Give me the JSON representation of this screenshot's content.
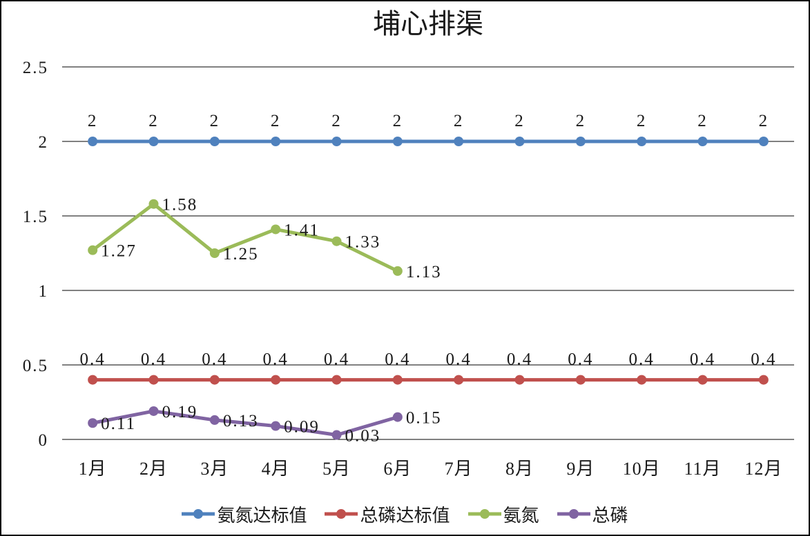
{
  "title": "埔心排渠",
  "chart_data": {
    "type": "line",
    "title": "埔心排渠",
    "xlabel": "",
    "ylabel": "",
    "categories": [
      "1月",
      "2月",
      "3月",
      "4月",
      "5月",
      "6月",
      "7月",
      "8月",
      "9月",
      "10月",
      "11月",
      "12月"
    ],
    "y_ticks": [
      "0",
      "0.5",
      "1",
      "1.5",
      "2",
      "2.5"
    ],
    "ylim": [
      0,
      2.5
    ],
    "grid": true,
    "legend_position": "bottom",
    "gridline_color": "#000000",
    "text_color": "#1a1a1a",
    "series": [
      {
        "name": "氨氮达标值",
        "color": "#4F81BD",
        "values": [
          2,
          2,
          2,
          2,
          2,
          2,
          2,
          2,
          2,
          2,
          2,
          2
        ],
        "labels": [
          "2",
          "2",
          "2",
          "2",
          "2",
          "2",
          "2",
          "2",
          "2",
          "2",
          "2",
          "2"
        ],
        "label_position": "above"
      },
      {
        "name": "总磷达标值",
        "color": "#C0504D",
        "values": [
          0.4,
          0.4,
          0.4,
          0.4,
          0.4,
          0.4,
          0.4,
          0.4,
          0.4,
          0.4,
          0.4,
          0.4
        ],
        "labels": [
          "0.4",
          "0.4",
          "0.4",
          "0.4",
          "0.4",
          "0.4",
          "0.4",
          "0.4",
          "0.4",
          "0.4",
          "0.4",
          "0.4"
        ],
        "label_position": "above"
      },
      {
        "name": "氨氮",
        "color": "#9BBB59",
        "values": [
          1.27,
          1.58,
          1.25,
          1.41,
          1.33,
          1.13
        ],
        "labels": [
          "1.27",
          "1.58",
          "1.25",
          "1.41",
          "1.33",
          "1.13"
        ],
        "label_position": "right"
      },
      {
        "name": "总磷",
        "color": "#8064A2",
        "values": [
          0.11,
          0.19,
          0.13,
          0.09,
          0.03,
          0.15
        ],
        "labels": [
          "0.11",
          "0.19",
          "0.13",
          "0.09",
          "0.03",
          "0.15"
        ],
        "label_position": "right"
      }
    ]
  }
}
